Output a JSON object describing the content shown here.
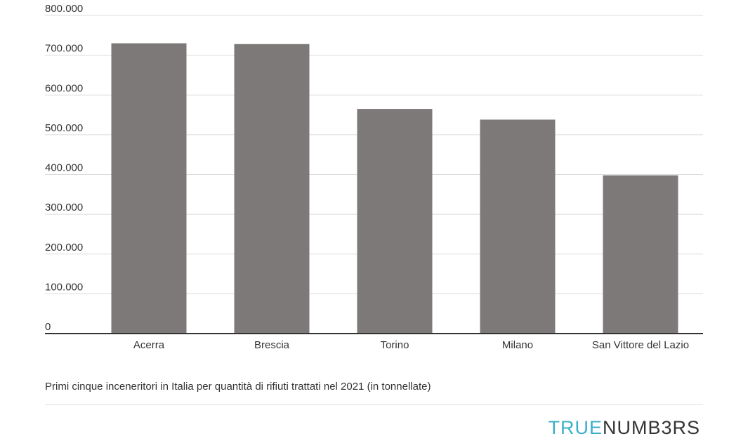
{
  "chart_data": {
    "type": "bar",
    "categories": [
      "Acerra",
      "Brescia",
      "Torino",
      "Milano",
      "San Vittore del Lazio"
    ],
    "values": [
      730000,
      728000,
      565000,
      538000,
      398000
    ],
    "ylim": [
      0,
      800000
    ],
    "yticks": [
      0,
      100000,
      200000,
      300000,
      400000,
      500000,
      600000,
      700000,
      800000
    ],
    "ytick_labels": [
      "0",
      "100.000",
      "200.000",
      "300.000",
      "400.000",
      "500.000",
      "600.000",
      "700.000",
      "800.000"
    ],
    "grid": true,
    "colors": {
      "bar": "#7d7978",
      "grid": "#dcdcdc",
      "axis": "#333333",
      "text": "#333333"
    }
  },
  "caption": "Primi cinque inceneritori in Italia per quantità di rifiuti trattati nel 2021 (in tonnellate)",
  "brand": {
    "part1": "TRUE",
    "part2": "NUMB3RS"
  }
}
